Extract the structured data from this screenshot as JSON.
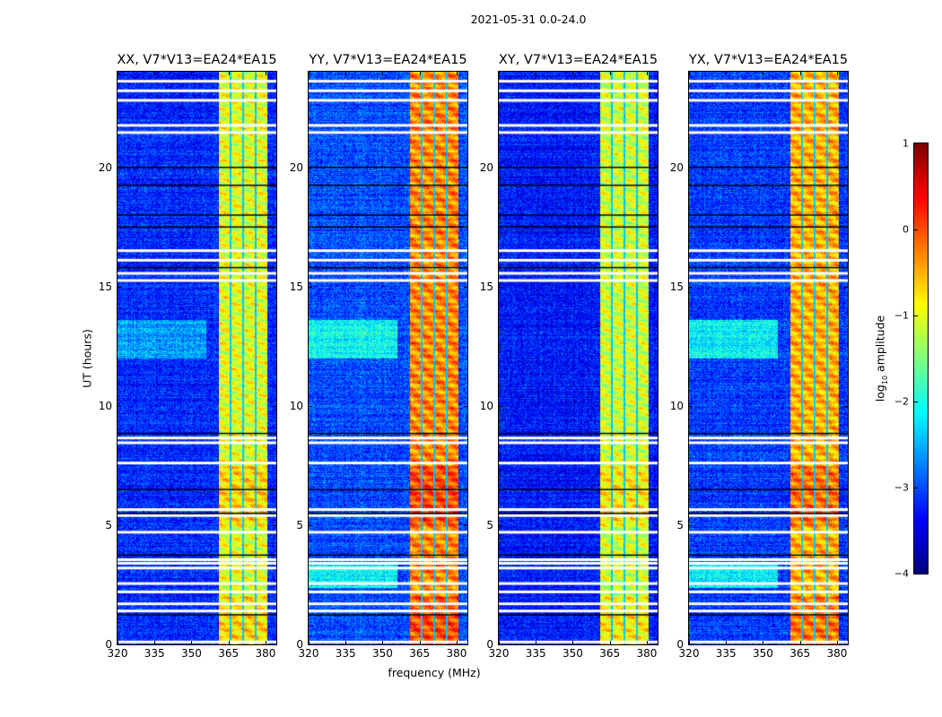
{
  "figure_title": "2021-05-31 0.0-24.0",
  "chart_data": {
    "type": "heatmap",
    "panels": [
      {
        "title": "XX, V7*V13=EA24*EA15",
        "background_log_amp": -3.2,
        "rfi_band_log_amp": -1.0
      },
      {
        "title": "YY, V7*V13=EA24*EA15",
        "background_log_amp": -3.0,
        "rfi_band_log_amp": -0.3
      },
      {
        "title": "XY, V7*V13=EA24*EA15",
        "background_log_amp": -3.3,
        "rfi_band_log_amp": -1.1
      },
      {
        "title": "YX, V7*V13=EA24*EA15",
        "background_log_amp": -3.1,
        "rfi_band_log_amp": -0.5
      }
    ],
    "xlabel": "frequency (MHz)",
    "ylabel": "UT (hours)",
    "xlim": [
      320,
      384.4
    ],
    "ylim": [
      0,
      24
    ],
    "xticks": [
      "320",
      "335",
      "350",
      "365",
      "380"
    ],
    "xtick_values": [
      320,
      335,
      350,
      365,
      380
    ],
    "yticks": [
      "0",
      "5",
      "10",
      "15",
      "20"
    ],
    "ytick_values": [
      0,
      5,
      10,
      15,
      20
    ],
    "rfi_band_mhz": [
      361,
      380.5
    ],
    "rfi_subband_gaps_mhz": [
      365.7,
      370.9,
      376.0
    ],
    "flagged_hours_white": [
      23.6,
      23.2,
      22.8,
      21.75,
      21.45,
      16.5,
      16.1,
      15.55,
      15.25,
      8.65,
      8.45,
      7.6,
      5.65,
      5.4,
      4.7,
      3.55,
      3.4,
      3.2,
      2.55,
      2.2,
      1.7,
      1.4,
      0.1
    ],
    "flagged_hours_black": [
      20.0,
      19.25,
      18.0,
      17.5,
      15.8,
      8.85,
      6.5,
      5.5,
      3.75,
      1.25
    ],
    "colorbar": {
      "label": "amplitude",
      "label_prefix": "log",
      "label_sub": "10",
      "colormap": "jet",
      "range": [
        -4,
        1
      ],
      "ticks": [
        "1",
        "0",
        "−1",
        "−2",
        "−3",
        "−4"
      ],
      "tick_values": [
        1,
        0,
        -1,
        -2,
        -3,
        -4
      ]
    }
  }
}
